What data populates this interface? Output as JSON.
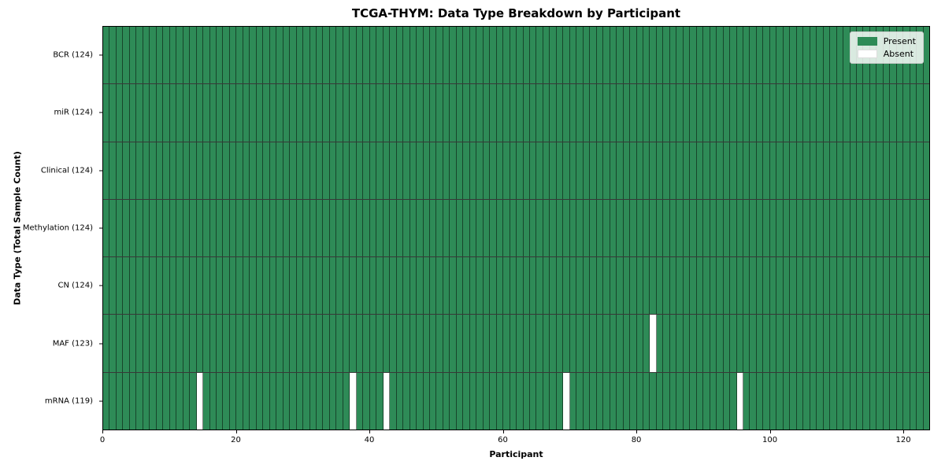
{
  "chart_data": {
    "type": "heatmap",
    "title": "TCGA-THYM: Data Type Breakdown by Participant",
    "xlabel": "Participant",
    "ylabel": "Data Type (Total Sample Count)",
    "xlim": [
      0,
      124
    ],
    "x_ticks": [
      0,
      20,
      40,
      60,
      80,
      100,
      120
    ],
    "n_participants": 124,
    "grid": "cell-edges-on",
    "rows": [
      {
        "data_type": "BCR",
        "label": "BCR (124)",
        "present_count": 124,
        "absent_participants": []
      },
      {
        "data_type": "miR",
        "label": "miR (124)",
        "present_count": 124,
        "absent_participants": []
      },
      {
        "data_type": "Clinical",
        "label": "Clinical (124)",
        "present_count": 124,
        "absent_participants": []
      },
      {
        "data_type": "Methylation",
        "label": "Methylation (124)",
        "present_count": 124,
        "absent_participants": []
      },
      {
        "data_type": "CN",
        "label": "CN (124)",
        "present_count": 124,
        "absent_participants": []
      },
      {
        "data_type": "MAF",
        "label": "MAF (123)",
        "present_count": 123,
        "absent_participants": [
          82
        ]
      },
      {
        "data_type": "mRNA",
        "label": "mRNA (119)",
        "present_count": 119,
        "absent_participants": [
          14,
          37,
          42,
          69,
          95
        ]
      }
    ],
    "legend": {
      "position": "upper right",
      "entries": [
        {
          "label": "Present",
          "color": "#2e8b57"
        },
        {
          "label": "Absent",
          "color": "#ffffff"
        }
      ]
    },
    "colors": {
      "present": "#2e8b57",
      "absent": "#ffffff",
      "cell_edge": "#000000",
      "axes_edge": "#000000",
      "background": "#ffffff"
    }
  }
}
